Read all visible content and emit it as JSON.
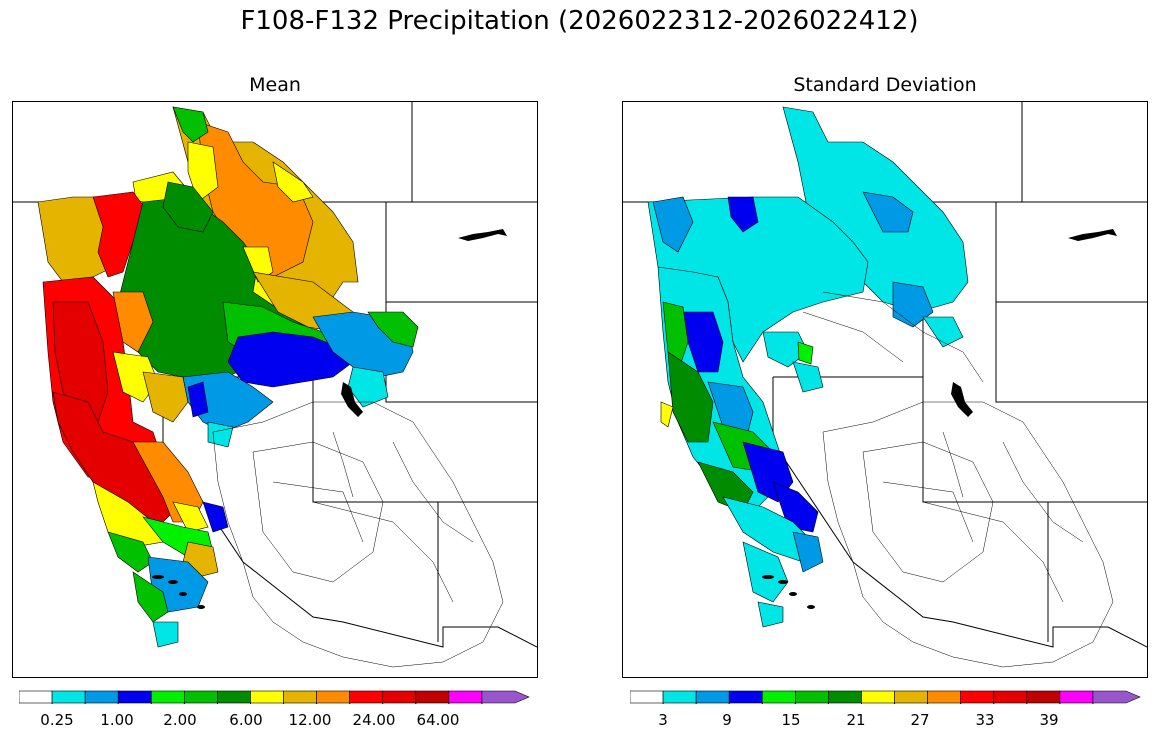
{
  "title": "F108-F132 Precipitation (2026022312-2026022412)",
  "panels": [
    {
      "title": "Mean",
      "colorbar_labels": [
        "0.25",
        "1.00",
        "2.00",
        "6.00",
        "12.00",
        "24.00",
        "64.00"
      ]
    },
    {
      "title": "Standard Deviation",
      "colorbar_labels": [
        "3",
        "9",
        "15",
        "21",
        "27",
        "33",
        "39"
      ]
    }
  ],
  "colors": {
    "scale": [
      "#ffffff",
      "#00e5e5",
      "#0099e5",
      "#0000f0",
      "#00f000",
      "#00c000",
      "#008c00",
      "#ffff00",
      "#e5b400",
      "#ff8c00",
      "#ff0000",
      "#e50000",
      "#c00000",
      "#ff00ff",
      "#9955cc"
    ]
  }
}
